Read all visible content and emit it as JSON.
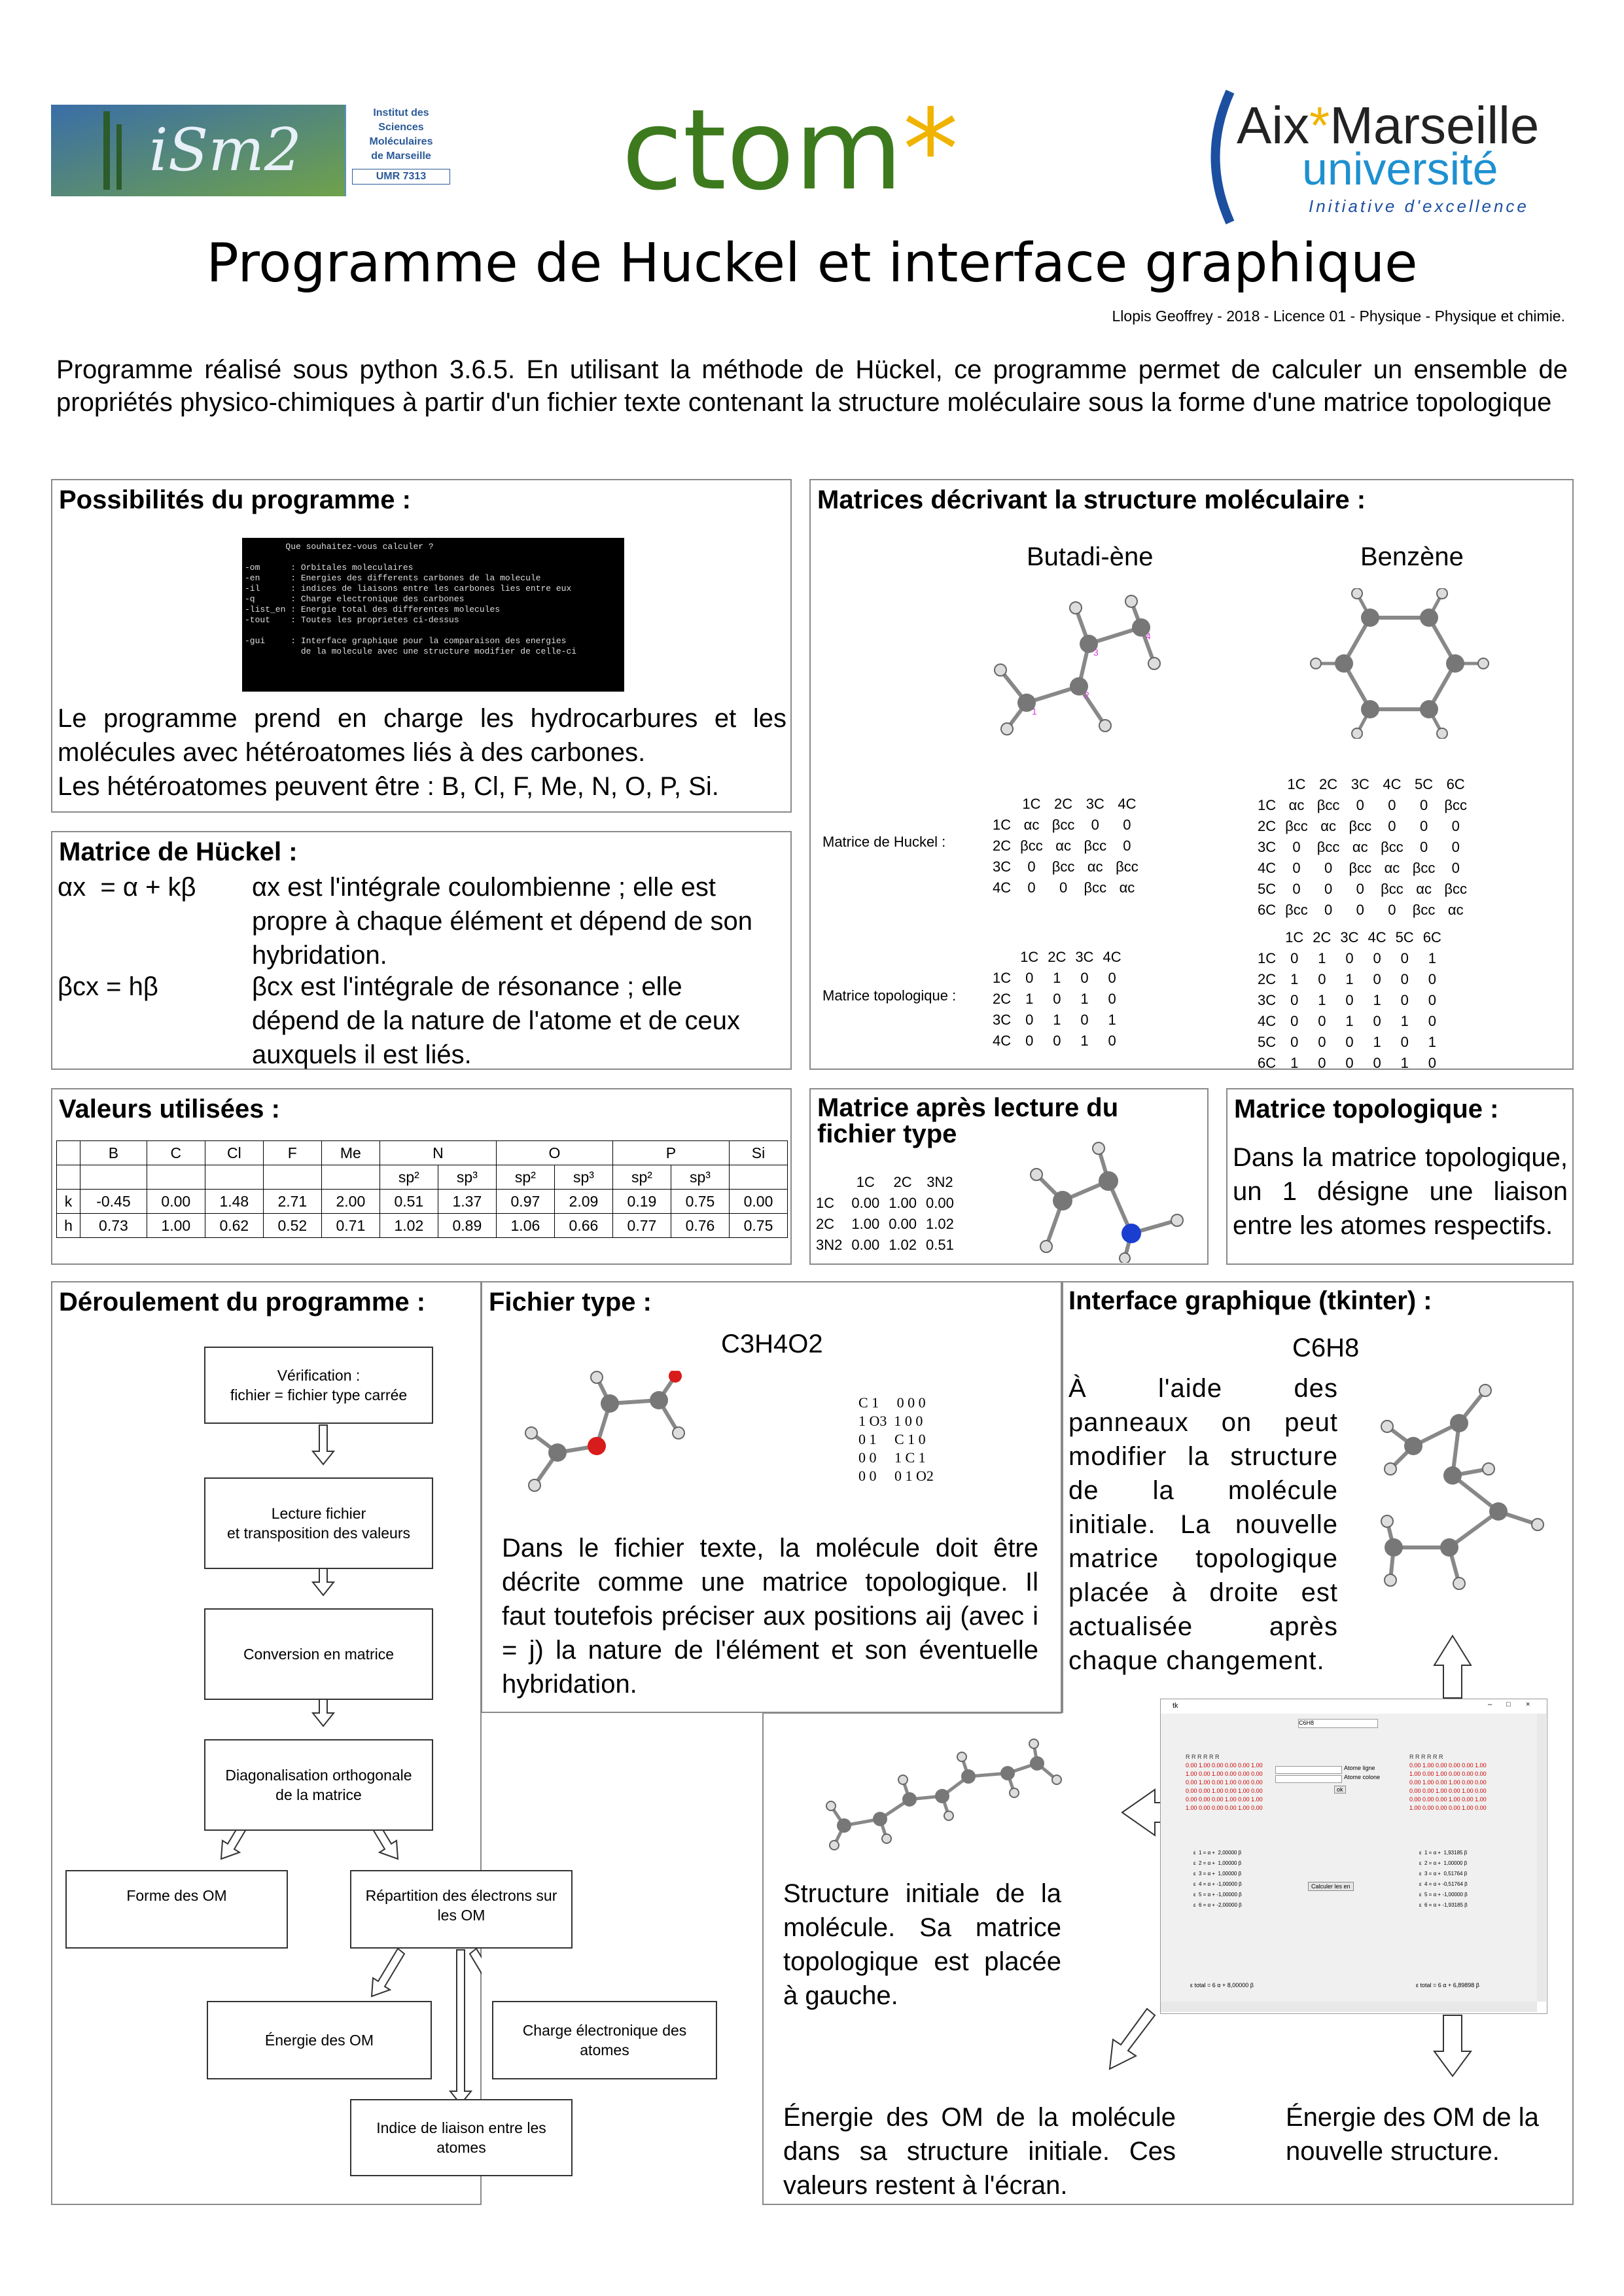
{
  "logos": {
    "ism2": {
      "line1": "Institut des",
      "line2": "Sciences Moléculaires",
      "line3": "de Marseille",
      "umr": "UMR 7313",
      "mark": "iSm2"
    },
    "ctom": {
      "text": "ctom",
      "star": "*"
    },
    "amu": {
      "aix": "Aix",
      "marseille": "Marseille",
      "univ": "université",
      "tag": "Initiative d'excellence"
    }
  },
  "title": "Programme de Huckel et interface graphique",
  "author": "Llopis Geoffrey - 2018 - Licence 01 - Physique - Physique et chimie.",
  "intro": "Programme réalisé sous python 3.6.5. En utilisant la méthode de Hückel, ce programme permet de calculer un ensemble de propriétés physico-chimiques à partir d'un fichier texte contenant la structure moléculaire sous la forme d'une matrice topologique",
  "possibilites": {
    "title": "Possibilités du programme :",
    "terminal": [
      "        Que souhaitez-vous calculer ?",
      "",
      "-om      : Orbitales moleculaires",
      "-en      : Energies des differents carbones de la molecule",
      "-il      : indices de liaisons entre les carbones lies entre eux",
      "-q       : Charge electronique des carbones",
      "-list_en : Energie total des differentes molecules",
      "-tout    : Toutes les proprietes ci-dessus",
      "",
      "-gui     : Interface graphique pour la comparaison des energies",
      "           de la molecule avec une structure modifier de celle-ci"
    ],
    "text1": "Le programme prend en charge les hydrocarbures et les molécules avec hétéroatomes liés à des carbones.",
    "text2": "Les hétéroatomes peuvent être : B, Cl, F, Me, N, O, P, Si."
  },
  "huckel": {
    "title": "Matrice de Hückel :",
    "eq1": "αx  = α + kβ",
    "desc1": "αx est l'intégrale coulombienne ; elle est propre à chaque élément et dépend de son hybridation.",
    "eq2": "βcx = hβ",
    "desc2": "βcx est l'intégrale de résonance ; elle dépend de la nature de l'atome et de ceux auxquels il est liés."
  },
  "matrices": {
    "title": "Matrices décrivant la structure moléculaire :",
    "butadiene": "Butadi-ène",
    "benzene": "Benzène",
    "huckel_label": "Matrice de Huckel :",
    "topo_label": "Matrice topologique :",
    "but_huckel": {
      "head": [
        "",
        "1C",
        "2C",
        "3C",
        "4C"
      ],
      "rows": [
        [
          "1C",
          "αc",
          "βcc",
          "0",
          "0"
        ],
        [
          "2C",
          "βcc",
          "αc",
          "βcc",
          "0"
        ],
        [
          "3C",
          "0",
          "βcc",
          "αc",
          "βcc"
        ],
        [
          "4C",
          "0",
          "0",
          "βcc",
          "αc"
        ]
      ]
    },
    "ben_huckel": {
      "head": [
        "",
        "1C",
        "2C",
        "3C",
        "4C",
        "5C",
        "6C"
      ],
      "rows": [
        [
          "1C",
          "αc",
          "βcc",
          "0",
          "0",
          "0",
          "βcc"
        ],
        [
          "2C",
          "βcc",
          "αc",
          "βcc",
          "0",
          "0",
          "0"
        ],
        [
          "3C",
          "0",
          "βcc",
          "αc",
          "βcc",
          "0",
          "0"
        ],
        [
          "4C",
          "0",
          "0",
          "βcc",
          "αc",
          "βcc",
          "0"
        ],
        [
          "5C",
          "0",
          "0",
          "0",
          "βcc",
          "αc",
          "βcc"
        ],
        [
          "6C",
          "βcc",
          "0",
          "0",
          "0",
          "βcc",
          "αc"
        ]
      ]
    },
    "but_topo": {
      "head": [
        "",
        "1C",
        "2C",
        "3C",
        "4C"
      ],
      "rows": [
        [
          "1C",
          "0",
          "1",
          "0",
          "0"
        ],
        [
          "2C",
          "1",
          "0",
          "1",
          "0"
        ],
        [
          "3C",
          "0",
          "1",
          "0",
          "1"
        ],
        [
          "4C",
          "0",
          "0",
          "1",
          "0"
        ]
      ]
    },
    "ben_topo": {
      "head": [
        "",
        "1C",
        "2C",
        "3C",
        "4C",
        "5C",
        "6C"
      ],
      "rows": [
        [
          "1C",
          "0",
          "1",
          "0",
          "0",
          "0",
          "1"
        ],
        [
          "2C",
          "1",
          "0",
          "1",
          "0",
          "0",
          "0"
        ],
        [
          "3C",
          "0",
          "1",
          "0",
          "1",
          "0",
          "0"
        ],
        [
          "4C",
          "0",
          "0",
          "1",
          "0",
          "1",
          "0"
        ],
        [
          "5C",
          "0",
          "0",
          "0",
          "1",
          "0",
          "1"
        ],
        [
          "6C",
          "1",
          "0",
          "0",
          "0",
          "1",
          "0"
        ]
      ]
    }
  },
  "valeurs": {
    "title": "Valeurs utilisées :",
    "head1": [
      "",
      "B",
      "C",
      "Cl",
      "F",
      "Me",
      "N",
      "O",
      "P",
      "Si"
    ],
    "head2": [
      "",
      "",
      "",
      "",
      "",
      "",
      "sp²",
      "sp³",
      "sp²",
      "sp³",
      "sp²",
      "sp³",
      ""
    ],
    "k": [
      "k",
      "-0.45",
      "0.00",
      "1.48",
      "2.71",
      "2.00",
      "0.51",
      "1.37",
      "0.97",
      "2.09",
      "0.19",
      "0.75",
      "0.00"
    ],
    "h": [
      "h",
      "0.73",
      "1.00",
      "0.62",
      "0.52",
      "0.71",
      "1.02",
      "0.89",
      "1.06",
      "0.66",
      "0.77",
      "0.76",
      "0.75"
    ]
  },
  "lecture": {
    "title": "Matrice après lecture du fichier type",
    "head": [
      "",
      "1C",
      "2C",
      "3N2"
    ],
    "rows": [
      [
        "1C",
        "0.00",
        "1.00",
        "0.00"
      ],
      [
        "2C",
        "1.00",
        "0.00",
        "1.02"
      ],
      [
        "3N2",
        "0.00",
        "1.02",
        "0.51"
      ]
    ]
  },
  "topologique": {
    "title": "Matrice topologique :",
    "text": "Dans la matrice topologique, un 1 désigne une liaison entre les atomes respectifs."
  },
  "deroulement": {
    "title": "Déroulement du programme :",
    "steps": {
      "verif": "Vérification :\nfichier = fichier type carrée",
      "lecture": "Lecture fichier\net transposition des valeurs",
      "conversion": "Conversion en matrice",
      "diag": "Diagonalisation orthogonale\nde la matrice",
      "forme": "Forme des OM",
      "repartition": "Répartition des électrons sur\nles OM",
      "energie": "Énergie des OM",
      "charge": "Charge électronique des\natomes",
      "indice": "Indice de liaison entre les\natomes"
    }
  },
  "fichier": {
    "title": "Fichier type :",
    "formula": "C3H4O2",
    "matrix": [
      "C 1     0 0 0",
      "1 O3  1 0 0",
      "0 1     C 1 0",
      "0 0     1 C 1",
      "0 0     0 1 O2"
    ],
    "text": "Dans le fichier texte, la molécule doit être décrite comme une matrice topologique. Il faut toutefois préciser aux positions aij (avec i = j) la nature de l'élément et son éventuelle hybridation."
  },
  "interface": {
    "title": "Interface graphique (tkinter) :",
    "formula": "C6H8",
    "text": "À l'aide des panneaux on peut modifier la structure de la molécule initiale. La nouvelle matrice topologique placée à droite est actualisée après chaque changement.",
    "caption_left": "Structure initiale de la molécule. Sa matrice topologique est placée à gauche.",
    "caption_energy_left": "Énergie des OM de la molécule dans sa structure initiale. Ces valeurs restent à l'écran.",
    "caption_energy_right": "Énergie des OM de la nouvelle structure.",
    "gui": {
      "window_title": "tk",
      "select": "C6H8",
      "btn_line": "Atome ligne",
      "btn_col": "Atome colone",
      "btn_ok": "ok",
      "btn_calc": "Calculer les en",
      "total_left": "ε total = 6 α + 8,00000 β",
      "total_right": "ε total = 6 α + 6,89898 β",
      "eps_left": [
        "ε  1 = α +  2,00000 β",
        "ε  2 = α +  1,00000 β",
        "ε  3 = α +  1,00000 β",
        "ε  4 = α + -1,00000 β",
        "ε  5 = α + -1,00000 β",
        "ε  6 = α + -2,00000 β"
      ],
      "eps_right": [
        "ε  1 = α +  1,93185 β",
        "ε  2 = α +  1,00000 β",
        "ε  3 = α +  0,51764 β",
        "ε  4 = α + -0,51764 β",
        "ε  5 = α + -1,00000 β",
        "ε  6 = α + -1,93185 β"
      ]
    }
  }
}
